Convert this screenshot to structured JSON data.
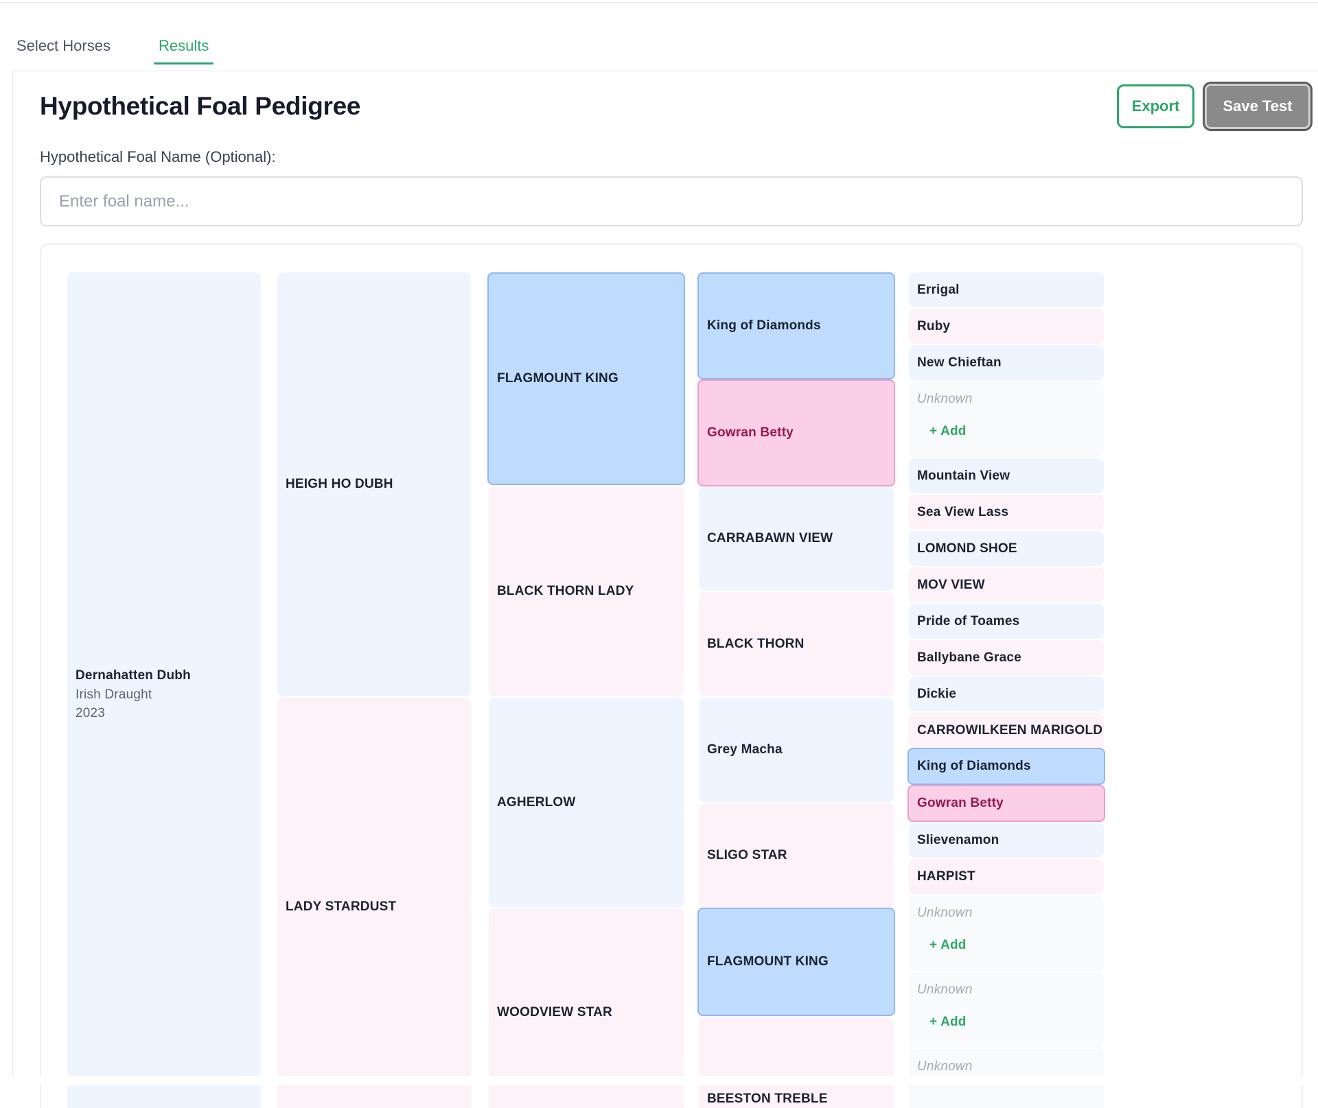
{
  "tabs": [
    {
      "label": "Select Horses"
    },
    {
      "label": "Results"
    }
  ],
  "header": {
    "title": "Hypothetical Foal Pedigree",
    "export_label": "Export",
    "save_label": "Save Test"
  },
  "foal": {
    "field_label": "Hypothetical Foal Name (Optional):",
    "placeholder": "Enter foal name...",
    "value": ""
  },
  "pedigree": {
    "subject": {
      "name": "Dernahatten Dubh",
      "breed": "Irish Draught",
      "year": "2023"
    },
    "gen1": [
      "HEIGH HO DUBH",
      "LADY STARDUST"
    ],
    "gen2": [
      "FLAGMOUNT KING",
      "BLACK THORN LADY",
      "AGHERLOW",
      "WOODVIEW STAR"
    ],
    "gen3": [
      "King of Diamonds",
      "Gowran Betty",
      "CARRABAWN VIEW",
      "BLACK THORN",
      "Grey Macha",
      "SLIGO STAR",
      "FLAGMOUNT KING",
      "BEESTON TREBLE"
    ],
    "gen4": [
      "Errigal",
      "Ruby",
      "New Chieftan",
      "Mountain View",
      "Sea View Lass",
      "LOMOND SHOE",
      "MOV VIEW",
      "Pride of Toames",
      "Ballybane Grace",
      "Dickie",
      "CARROWILKEEN MARIGOLD",
      "King of Diamonds",
      "Gowran Betty",
      "Slievenamon",
      "HARPIST"
    ],
    "unknown_label": "Unknown",
    "add_label": "+ Add",
    "highlight_colors": {
      "sire": "#bfdbfd",
      "dam": "#fbcfe8"
    }
  }
}
